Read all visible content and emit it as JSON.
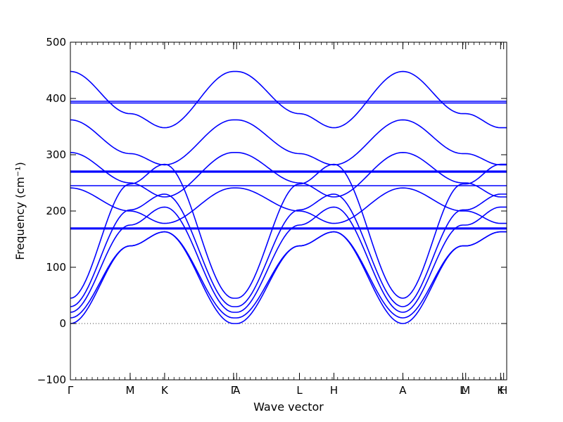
{
  "chart_data": {
    "type": "line",
    "xlabel": "Wave vector",
    "ylabel": "Frequency (cm⁻¹)",
    "ylim": [
      -100,
      500
    ],
    "y_ticks": [
      -100,
      0,
      100,
      200,
      300,
      400,
      500
    ],
    "y_tick_labels": [
      "−100",
      "0",
      "100",
      "200",
      "300",
      "400",
      "500"
    ],
    "x_ticks": [
      {
        "label": "Γ",
        "x": 0.0
      },
      {
        "label": "M",
        "x": 0.137
      },
      {
        "label": "K",
        "x": 0.216
      },
      {
        "label": "Γ",
        "x": 0.374
      },
      {
        "label": "A",
        "x": 0.381
      },
      {
        "label": "L",
        "x": 0.525
      },
      {
        "label": "H",
        "x": 0.604
      },
      {
        "label": "A",
        "x": 0.762
      },
      {
        "label": "L",
        "x": 0.899
      },
      {
        "label": "M",
        "x": 0.906
      },
      {
        "label": "K",
        "x": 0.986
      },
      {
        "label": "H",
        "x": 0.993
      }
    ],
    "xlim": [
      0,
      1
    ],
    "zero_line": {
      "y": 0,
      "style": "dotted"
    },
    "line_color": "#0000ff",
    "series": [
      {
        "x": [
          0,
          0.137,
          0.216,
          0.374,
          0.381,
          0.525,
          0.604,
          0.762,
          0.899,
          0.906,
          0.986,
          0.993,
          1.0
        ],
        "values": [
          448,
          373,
          348,
          448,
          448,
          373,
          348,
          448,
          373,
          373,
          348,
          348,
          348
        ]
      },
      {
        "x": [
          0,
          1.0
        ],
        "values": [
          395,
          395
        ]
      },
      {
        "x": [
          0,
          1.0
        ],
        "values": [
          392,
          392
        ]
      },
      {
        "x": [
          0,
          0.137,
          0.216,
          0.374,
          0.381,
          0.525,
          0.604,
          0.762,
          0.899,
          0.906,
          0.986,
          0.993,
          1.0
        ],
        "values": [
          362,
          302,
          282,
          362,
          362,
          302,
          282,
          362,
          302,
          302,
          282,
          282,
          282
        ]
      },
      {
        "x": [
          0,
          0.137,
          0.216,
          0.374,
          0.381,
          0.525,
          0.604,
          0.762,
          0.899,
          0.906,
          0.986,
          0.993,
          1.0
        ],
        "values": [
          304,
          250,
          225,
          304,
          304,
          250,
          225,
          304,
          250,
          250,
          225,
          225,
          225
        ]
      },
      {
        "x": [
          0,
          1.0
        ],
        "values": [
          271,
          271
        ]
      },
      {
        "x": [
          0,
          1.0
        ],
        "values": [
          269,
          269
        ]
      },
      {
        "x": [
          0,
          1.0
        ],
        "values": [
          245,
          245
        ]
      },
      {
        "x": [
          0,
          0.137,
          0.216,
          0.374,
          0.381,
          0.525,
          0.604,
          0.762,
          0.899,
          0.906,
          0.986,
          0.993,
          1.0
        ],
        "values": [
          241,
          200,
          178,
          241,
          241,
          200,
          178,
          241,
          200,
          200,
          178,
          178,
          178
        ]
      },
      {
        "x": [
          0,
          1.0
        ],
        "values": [
          170,
          170
        ]
      },
      {
        "x": [
          0,
          1.0
        ],
        "values": [
          168,
          168
        ]
      },
      {
        "x": [
          0,
          0.137,
          0.216,
          0.374,
          0.381,
          0.525,
          0.604,
          0.762,
          0.899,
          0.906,
          0.986,
          0.993,
          1.0
        ],
        "values": [
          45,
          248,
          283,
          45,
          45,
          248,
          283,
          45,
          248,
          248,
          283,
          283,
          283
        ]
      },
      {
        "x": [
          0,
          0.137,
          0.216,
          0.374,
          0.381,
          0.525,
          0.604,
          0.762,
          0.899,
          0.906,
          0.986,
          0.993,
          1.0
        ],
        "values": [
          30,
          202,
          230,
          30,
          30,
          202,
          230,
          30,
          202,
          202,
          230,
          230,
          230
        ]
      },
      {
        "x": [
          0,
          0.137,
          0.216,
          0.374,
          0.381,
          0.525,
          0.604,
          0.762,
          0.899,
          0.906,
          0.986,
          0.993,
          1.0
        ],
        "values": [
          20,
          175,
          207,
          20,
          20,
          175,
          207,
          20,
          175,
          175,
          207,
          207,
          207
        ]
      },
      {
        "x": [
          0,
          0.137,
          0.216,
          0.374,
          0.381,
          0.525,
          0.604,
          0.762,
          0.899,
          0.906,
          0.986,
          0.993,
          1.0
        ],
        "values": [
          10,
          138,
          163,
          10,
          10,
          138,
          163,
          10,
          138,
          138,
          163,
          163,
          163
        ]
      },
      {
        "x": [
          0,
          0.137,
          0.216,
          0.374,
          0.381,
          0.525,
          0.604,
          0.762,
          0.899,
          0.906,
          0.986,
          0.993,
          1.0
        ],
        "values": [
          0,
          138,
          163,
          0,
          0,
          138,
          163,
          0,
          138,
          138,
          163,
          163,
          163
        ]
      }
    ]
  }
}
